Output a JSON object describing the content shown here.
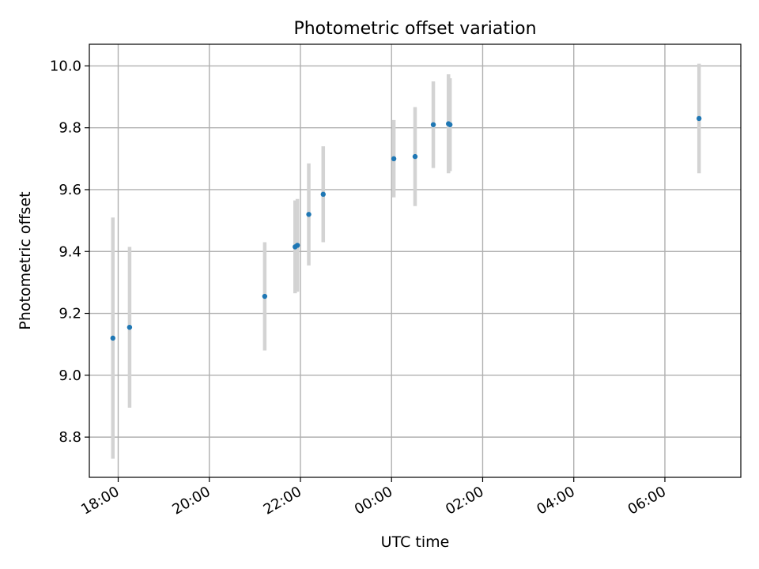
{
  "chart_data": {
    "type": "scatter",
    "title": "Photometric offset variation",
    "xlabel": "UTC time",
    "ylabel": "Photometric offset",
    "grid": true,
    "x_tick_labels": [
      "18:00",
      "20:00",
      "22:00",
      "00:00",
      "02:00",
      "04:00",
      "06:00"
    ],
    "y_tick_labels": [
      "8.8",
      "9.0",
      "9.2",
      "9.4",
      "9.6",
      "9.8",
      "10.0"
    ],
    "xlim": [
      "17:22",
      "07:40"
    ],
    "ylim": [
      8.67,
      10.07
    ],
    "colors": {
      "points": "#1f77b4",
      "errorbars": "#d3d3d3",
      "grid": "#b0b0b0"
    },
    "points": [
      {
        "x": "17:53",
        "y": 9.12,
        "yerr": 0.39
      },
      {
        "x": "18:15",
        "y": 9.155,
        "yerr": 0.26
      },
      {
        "x": "21:13",
        "y": 9.255,
        "yerr": 0.175
      },
      {
        "x": "21:53",
        "y": 9.415,
        "yerr": 0.15
      },
      {
        "x": "21:56",
        "y": 9.42,
        "yerr": 0.15
      },
      {
        "x": "22:11",
        "y": 9.52,
        "yerr": 0.165
      },
      {
        "x": "22:30",
        "y": 9.585,
        "yerr": 0.155
      },
      {
        "x": "00:03",
        "y": 9.7,
        "yerr": 0.125
      },
      {
        "x": "00:31",
        "y": 9.707,
        "yerr": 0.16
      },
      {
        "x": "00:55",
        "y": 9.81,
        "yerr": 0.14
      },
      {
        "x": "01:15",
        "y": 9.813,
        "yerr": 0.16
      },
      {
        "x": "01:17",
        "y": 9.81,
        "yerr": 0.15
      },
      {
        "x": "06:45",
        "y": 9.83,
        "yerr": 0.177
      }
    ]
  }
}
